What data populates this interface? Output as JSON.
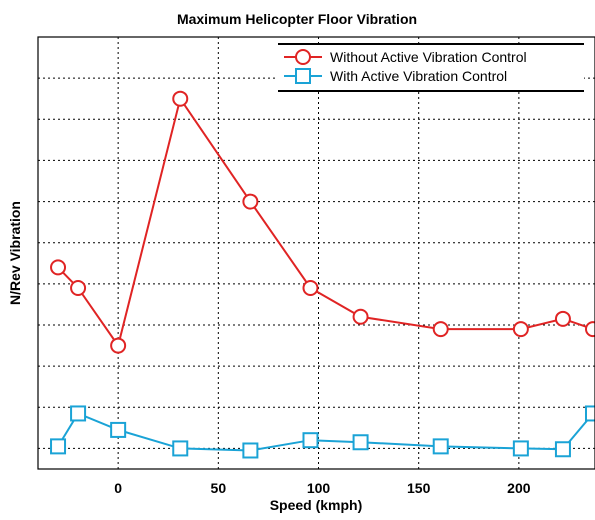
{
  "chart_data": {
    "type": "line",
    "title": "Maximum Helicopter Floor Vibration",
    "xlabel": "Speed (kmph)",
    "ylabel": "N/Rev Vibration",
    "xlim": [
      -40,
      238
    ],
    "ylim": [
      0,
      10.5
    ],
    "x_ticks": [
      0,
      50,
      100,
      150,
      200
    ],
    "y_gridlines": [
      0.5,
      1.5,
      2.5,
      3.5,
      4.5,
      5.5,
      6.5,
      7.5,
      8.5,
      9.5
    ],
    "grid": true,
    "legend_position": "top-right",
    "series": [
      {
        "name": "Without Active Vibration Control",
        "color": "#e02424",
        "marker": "circle",
        "points": [
          {
            "x": -30,
            "y": 4.9
          },
          {
            "x": -20,
            "y": 4.4
          },
          {
            "x": 0,
            "y": 3.0
          },
          {
            "x": 31,
            "y": 9.0
          },
          {
            "x": 66,
            "y": 6.5
          },
          {
            "x": 96,
            "y": 4.4
          },
          {
            "x": 121,
            "y": 3.7
          },
          {
            "x": 161,
            "y": 3.4
          },
          {
            "x": 201,
            "y": 3.4
          },
          {
            "x": 222,
            "y": 3.65
          },
          {
            "x": 237,
            "y": 3.4
          }
        ]
      },
      {
        "name": "With Active Vibration Control",
        "color": "#1aa3d6",
        "marker": "square",
        "points": [
          {
            "x": -30,
            "y": 0.55
          },
          {
            "x": -20,
            "y": 1.35
          },
          {
            "x": 0,
            "y": 0.95
          },
          {
            "x": 31,
            "y": 0.5
          },
          {
            "x": 66,
            "y": 0.45
          },
          {
            "x": 96,
            "y": 0.7
          },
          {
            "x": 121,
            "y": 0.65
          },
          {
            "x": 161,
            "y": 0.55
          },
          {
            "x": 201,
            "y": 0.5
          },
          {
            "x": 222,
            "y": 0.48
          },
          {
            "x": 237,
            "y": 1.35
          }
        ]
      }
    ]
  }
}
